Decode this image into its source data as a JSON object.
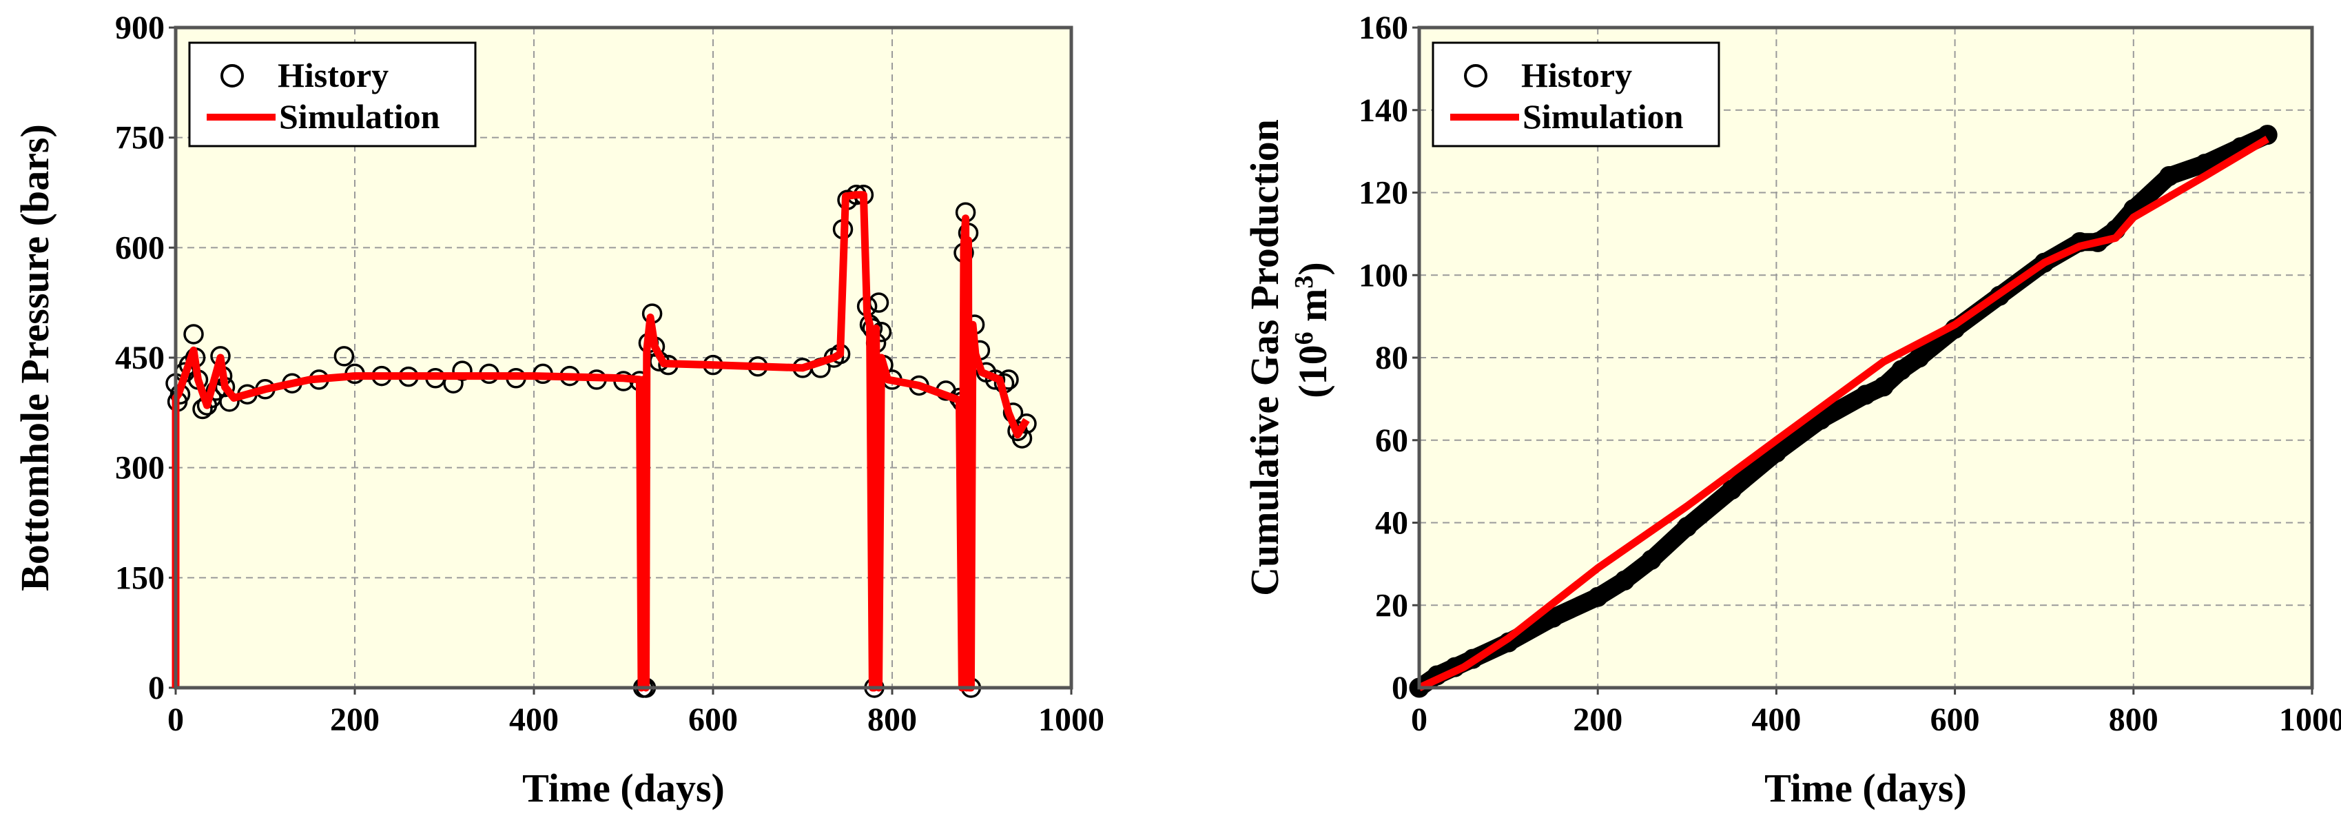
{
  "chart_data": [
    {
      "type": "scatter",
      "xlabel": "Time (days)",
      "ylabel": "Bottomhole Pressure (bars)",
      "xlim": [
        0,
        1000
      ],
      "ylim": [
        0,
        900
      ],
      "xticks": [
        "0",
        "200",
        "400",
        "600",
        "800",
        "1000"
      ],
      "yticks": [
        "0",
        "150",
        "300",
        "450",
        "600",
        "750",
        "900"
      ],
      "grid": true,
      "background": "#ffffe5",
      "legend_position": "top-left",
      "legend": [
        "History",
        "Simulation"
      ],
      "series": [
        {
          "name": "History",
          "style": "open-circle",
          "color": "#000000",
          "x": [
            0,
            2,
            5,
            10,
            15,
            20,
            22,
            25,
            30,
            35,
            40,
            45,
            50,
            52,
            55,
            60,
            80,
            100,
            130,
            160,
            188,
            200,
            230,
            260,
            290,
            310,
            320,
            350,
            380,
            410,
            440,
            470,
            500,
            518,
            522,
            525,
            528,
            532,
            535,
            540,
            550,
            600,
            650,
            700,
            720,
            735,
            742,
            745,
            750,
            760,
            768,
            772,
            775,
            778,
            780,
            782,
            785,
            788,
            790,
            800,
            830,
            860,
            875,
            878,
            880,
            882,
            885,
            888,
            892,
            898,
            905,
            915,
            925,
            930,
            935,
            940,
            945,
            950
          ],
          "y": [
            415,
            390,
            400,
            430,
            440,
            482,
            450,
            420,
            380,
            385,
            395,
            405,
            452,
            425,
            410,
            390,
            400,
            407,
            415,
            420,
            452,
            428,
            425,
            424,
            422,
            415,
            432,
            428,
            422,
            428,
            425,
            420,
            418,
            418,
            0,
            0,
            470,
            510,
            465,
            445,
            440,
            440,
            438,
            436,
            436,
            450,
            455,
            625,
            665,
            672,
            672,
            520,
            495,
            490,
            0,
            470,
            525,
            485,
            440,
            420,
            412,
            405,
            395,
            390,
            593,
            648,
            620,
            0,
            495,
            460,
            430,
            420,
            415,
            420,
            375,
            350,
            340,
            360
          ]
        },
        {
          "name": "Simulation",
          "style": "line",
          "color": "#ff0000",
          "x": [
            0,
            0,
            3,
            10,
            20,
            25,
            35,
            50,
            55,
            65,
            100,
            150,
            200,
            300,
            400,
            500,
            518,
            520,
            522,
            525,
            526,
            530,
            535,
            545,
            600,
            700,
            735,
            742,
            748,
            760,
            768,
            772,
            775,
            778,
            780,
            782,
            785,
            788,
            795,
            830,
            875,
            878,
            880,
            882,
            883,
            885,
            886,
            888,
            890,
            893,
            900,
            920,
            930,
            940,
            950
          ],
          "y": [
            0,
            395,
            400,
            425,
            460,
            420,
            385,
            450,
            410,
            395,
            407,
            420,
            425,
            425,
            425,
            422,
            420,
            0,
            420,
            0,
            460,
            505,
            465,
            442,
            440,
            436,
            450,
            455,
            670,
            672,
            672,
            510,
            495,
            0,
            0,
            490,
            0,
            450,
            420,
            412,
            392,
            0,
            600,
            640,
            0,
            610,
            0,
            0,
            495,
            455,
            430,
            420,
            375,
            345,
            365
          ]
        }
      ]
    },
    {
      "type": "scatter",
      "xlabel": "Time (days)",
      "ylabel_line1": "Cumulative Gas Production",
      "ylabel_line2_pre": "(10",
      "ylabel_line2_sup": "6",
      "ylabel_line2_post": " m",
      "ylabel_line2_sup2": "3",
      "ylabel_line2_end": ")",
      "xlim": [
        0,
        1000
      ],
      "ylim": [
        0,
        160
      ],
      "xticks": [
        "0",
        "200",
        "400",
        "600",
        "800",
        "1000"
      ],
      "yticks": [
        "0",
        "20",
        "40",
        "60",
        "80",
        "100",
        "120",
        "140",
        "160"
      ],
      "grid": true,
      "background": "#ffffe5",
      "legend_position": "top-left",
      "legend": [
        "History",
        "Simulation"
      ],
      "series": [
        {
          "name": "History",
          "style": "dense-open-circle",
          "color": "#000000",
          "x": [
            0,
            20,
            40,
            60,
            100,
            150,
            200,
            230,
            260,
            300,
            350,
            400,
            450,
            500,
            520,
            540,
            560,
            600,
            650,
            700,
            740,
            760,
            780,
            800,
            840,
            880,
            920,
            950
          ],
          "y": [
            0,
            3,
            5,
            7,
            11,
            17,
            22,
            26,
            31,
            39,
            48,
            57,
            65,
            71,
            73,
            77,
            80,
            87,
            95,
            103,
            108,
            108,
            111,
            116,
            124,
            127,
            131,
            134
          ]
        },
        {
          "name": "Simulation",
          "style": "line",
          "color": "#ff0000",
          "x": [
            0,
            50,
            100,
            200,
            300,
            400,
            520,
            600,
            700,
            740,
            780,
            800,
            880,
            950
          ],
          "y": [
            0,
            5,
            12,
            29,
            44,
            60,
            79,
            88,
            103,
            107,
            109,
            114,
            124,
            133
          ]
        }
      ]
    }
  ]
}
